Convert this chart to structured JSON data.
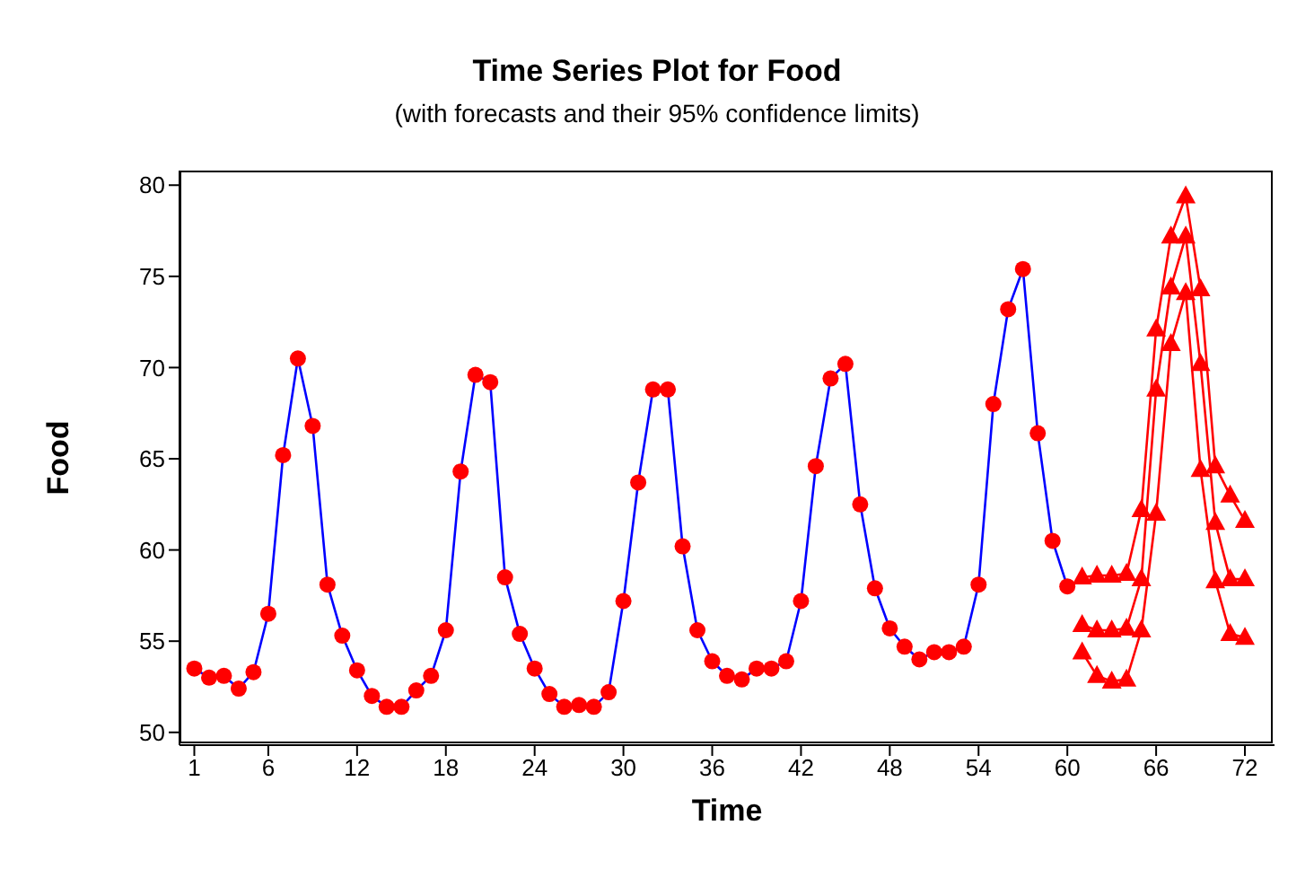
{
  "chart_data": {
    "type": "line",
    "title": "Time Series Plot for Food",
    "subtitle": "(with forecasts and their 95% confidence limits)",
    "xlabel": "Time",
    "ylabel": "Food",
    "xlim": [
      0,
      74
    ],
    "xticks": [
      1,
      6,
      12,
      18,
      24,
      30,
      36,
      42,
      48,
      54,
      60,
      66,
      72
    ],
    "ylim": [
      49.3,
      80.8
    ],
    "yticks": [
      50,
      55,
      60,
      65,
      70,
      75,
      80
    ],
    "grid": false,
    "series": [
      {
        "color": "#0000ff",
        "marker": "circle",
        "colors": [
          "#ff0000",
          "#ff0000",
          "#ff0000",
          "#ff0000",
          "#ff0000",
          "#ff0000",
          "#ff0000",
          "#ff0000",
          "#ff0000",
          "#ff0000",
          "#ff0000",
          "#ff0000",
          "#ff0000",
          "#ff0000",
          "#ff0000",
          "#ff0000",
          "#ff0000",
          "#ff0000",
          "#ff0000",
          "#ff0000",
          "#ff0000",
          "#ff0000",
          "#ff0000",
          "#ff0000",
          "#ff0000",
          "#ff0000",
          "#ff0000",
          "#ff0000",
          "#ff0000",
          "#ff0000",
          "#ff0000",
          "#ff0000",
          "#ff0000",
          "#ff0000",
          "#ff0000",
          "#ff0000",
          "#ff0000",
          "#ff0000",
          "#ff0000",
          "#ff0000",
          "#ff0000",
          "#ff0000",
          "#ff0000",
          "#ff0000",
          "#ff0000",
          "#ff0000",
          "#ff0000",
          "#ff0000",
          "#ff0000",
          "#ff0000",
          "#ff0000",
          "#ff0000",
          "#ff0000",
          "#ff0000",
          "#ff0000",
          "#ff0000",
          "#ff0000",
          "#ff0000",
          "#ff0000",
          "#ff0000"
        ],
        "x": [
          1,
          2,
          3,
          4,
          5,
          6,
          7,
          8,
          9,
          10,
          11,
          12,
          13,
          14,
          15,
          16,
          17,
          18,
          19,
          20,
          21,
          22,
          23,
          24,
          25,
          26,
          27,
          28,
          29,
          30,
          31,
          32,
          33,
          34,
          35,
          36,
          37,
          38,
          39,
          40,
          41,
          42,
          43,
          44,
          45,
          46,
          47,
          48,
          49,
          50,
          51,
          52,
          53,
          54,
          55,
          56,
          57,
          58,
          59,
          60
        ],
        "values": [
          53.5,
          53.0,
          53.1,
          52.4,
          53.3,
          56.5,
          65.2,
          70.5,
          66.8,
          58.1,
          55.3,
          53.4,
          52.0,
          51.4,
          51.4,
          52.3,
          53.1,
          55.6,
          64.3,
          69.6,
          69.2,
          58.5,
          55.4,
          53.5,
          52.1,
          51.4,
          51.5,
          51.4,
          52.2,
          57.2,
          63.7,
          68.8,
          68.8,
          60.2,
          55.6,
          53.9,
          53.1,
          52.9,
          53.5,
          53.5,
          53.9,
          57.2,
          64.6,
          69.4,
          70.2,
          62.5,
          57.9,
          55.7,
          54.7,
          54.0,
          54.4,
          54.4,
          54.7,
          58.1,
          68.0,
          73.2,
          75.4,
          66.4,
          60.5,
          58.0
        ]
      },
      {
        "color": "#ff0000",
        "marker": "triangle",
        "x": [
          61,
          62,
          63,
          64,
          65,
          66,
          67,
          68,
          69,
          70,
          71,
          72
        ],
        "values": [
          58.5,
          58.6,
          58.6,
          58.7,
          62.2,
          72.1,
          77.2,
          79.4,
          74.3,
          64.6,
          63.0,
          61.6
        ]
      },
      {
        "color": "#ff0000",
        "marker": "triangle",
        "x": [
          61,
          62,
          63,
          64,
          65,
          66,
          67,
          68,
          69,
          70,
          71,
          72
        ],
        "values": [
          55.9,
          55.6,
          55.6,
          55.7,
          58.4,
          68.8,
          74.4,
          77.2,
          70.2,
          61.5,
          58.4,
          58.4
        ]
      },
      {
        "color": "#ff0000",
        "marker": "triangle",
        "x": [
          61,
          62,
          63,
          64,
          65,
          66,
          67,
          68,
          69,
          70,
          71,
          72
        ],
        "values": [
          54.4,
          53.1,
          52.8,
          52.9,
          55.6,
          62.0,
          71.3,
          74.1,
          64.4,
          58.3,
          55.4,
          55.2
        ]
      }
    ]
  }
}
